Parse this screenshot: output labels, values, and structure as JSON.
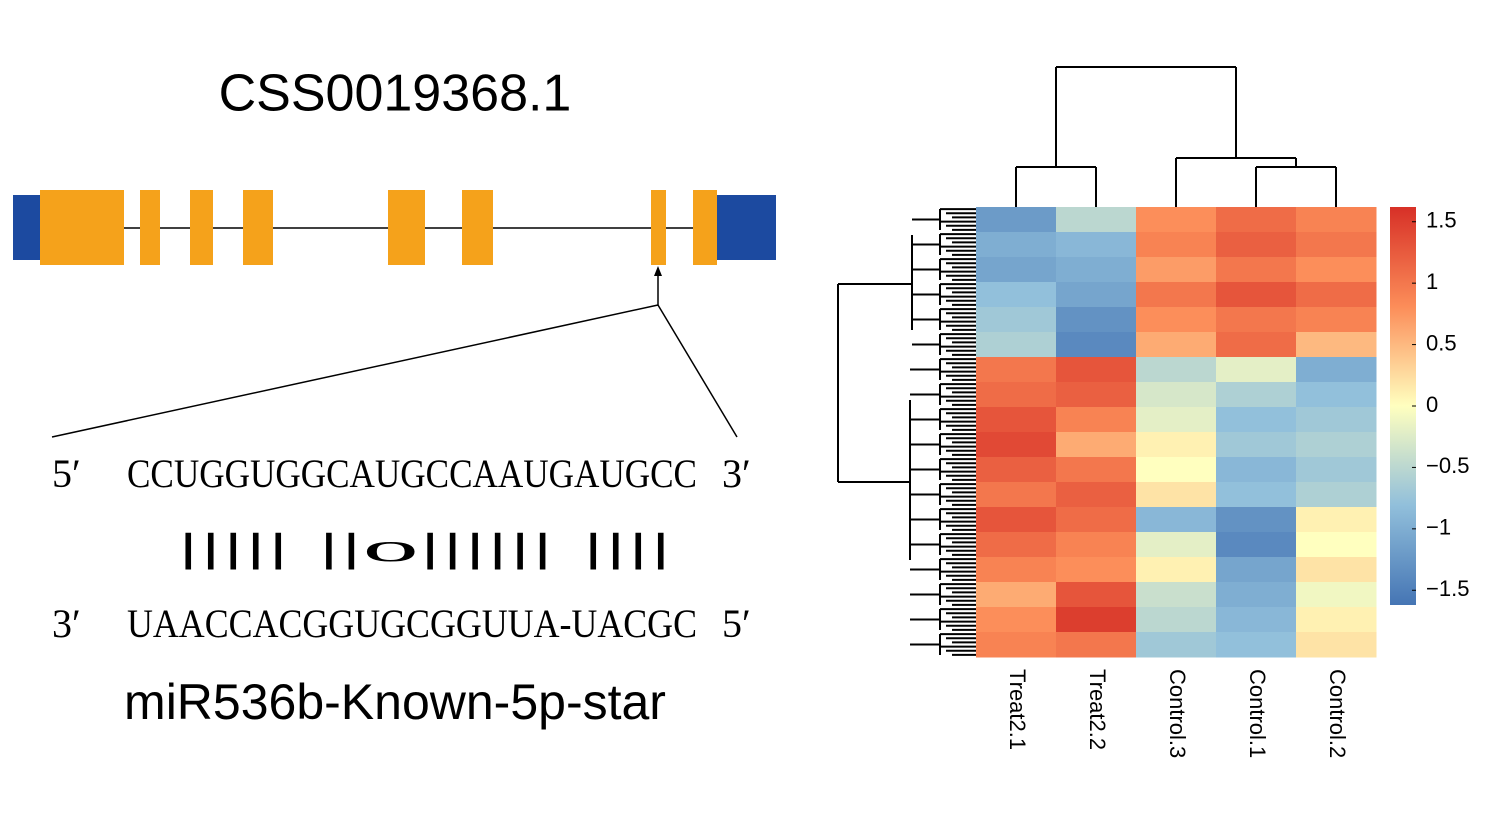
{
  "gene": {
    "title": "CSS0019368.1"
  },
  "alignment": {
    "top": {
      "left_end": "5′",
      "sequence": "CCUGGUGGCAUGCCAAUGAUGCC",
      "right_end": "3′"
    },
    "pairing": "||||| ||o|||||| ||||",
    "bottom": {
      "left_end": "3′",
      "sequence": "UAACCACGGUGCGGUUA-UACGC",
      "right_end": "5′"
    },
    "mirna": "miR536b-Known-5p-star"
  },
  "chart_data": {
    "type": "heatmap",
    "x": [
      "Treat2.1",
      "Treat2.2",
      "Control.3",
      "Control.1",
      "Control.2"
    ],
    "z": [
      [
        -1.2,
        -0.5,
        0.8,
        1.1,
        0.9
      ],
      [
        -1.0,
        -0.9,
        0.9,
        1.2,
        1.0
      ],
      [
        -1.1,
        -1.0,
        0.7,
        1.0,
        0.8
      ],
      [
        -0.8,
        -1.1,
        1.0,
        1.3,
        1.1
      ],
      [
        -0.7,
        -1.3,
        0.8,
        1.0,
        0.9
      ],
      [
        -0.6,
        -1.4,
        0.6,
        1.1,
        0.5
      ],
      [
        1.0,
        1.3,
        -0.5,
        -0.2,
        -1.0
      ],
      [
        1.1,
        1.2,
        -0.3,
        -0.6,
        -0.8
      ],
      [
        1.3,
        0.9,
        -0.2,
        -0.8,
        -0.7
      ],
      [
        1.4,
        0.6,
        0.1,
        -0.7,
        -0.6
      ],
      [
        1.2,
        1.0,
        0.0,
        -0.9,
        -0.7
      ],
      [
        1.0,
        1.2,
        0.2,
        -0.8,
        -0.6
      ],
      [
        1.3,
        1.1,
        -0.9,
        -1.3,
        0.1
      ],
      [
        1.1,
        0.9,
        -0.2,
        -1.4,
        0.0
      ],
      [
        0.9,
        0.8,
        0.1,
        -1.1,
        0.2
      ],
      [
        0.6,
        1.3,
        -0.4,
        -1.0,
        -0.1
      ],
      [
        0.8,
        1.5,
        -0.5,
        -0.9,
        0.1
      ],
      [
        0.9,
        1.0,
        -0.7,
        -0.8,
        0.2
      ]
    ],
    "clim": [
      -1.62,
      1.62
    ],
    "colors": [
      "#4575b4",
      "#91bfdb",
      "#ffffbf",
      "#fc8d59",
      "#d73027"
    ],
    "cticks": [
      {
        "value": 1.5,
        "label": "1.5"
      },
      1,
      {
        "value": 0.5,
        "label": "0.5"
      },
      0,
      {
        "value": -0.5,
        "label": "−0.5"
      },
      {
        "value": -1,
        "label": "−1"
      },
      {
        "value": -1.5,
        "label": "−1.5"
      }
    ]
  }
}
